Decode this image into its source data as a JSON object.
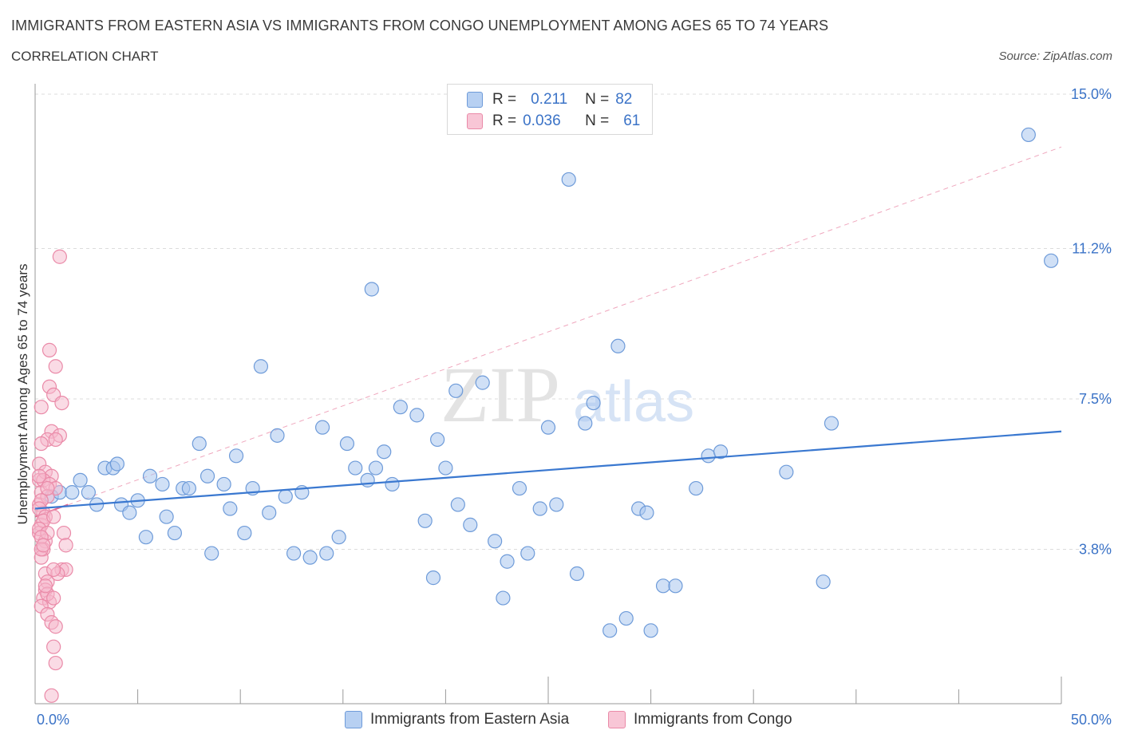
{
  "header": {
    "title": "IMMIGRANTS FROM EASTERN ASIA VS IMMIGRANTS FROM CONGO UNEMPLOYMENT AMONG AGES 65 TO 74 YEARS",
    "subtitle": "CORRELATION CHART",
    "source": "Source: ZipAtlas.com"
  },
  "watermark": {
    "zip": "ZIP",
    "atlas": "atlas"
  },
  "stats": {
    "blue": {
      "r_label": "R =",
      "r_value": "0.211",
      "n_label": "N =",
      "n_value": "82"
    },
    "pink": {
      "r_label": "R =",
      "r_value": "0.036",
      "n_label": "N =",
      "n_value": "61"
    }
  },
  "colors": {
    "blue_fill": "#a9c7ef",
    "blue_stroke": "#6e9bd9",
    "blue_line": "#3a78d0",
    "pink_fill": "#f6b8cb",
    "pink_stroke": "#ea8aa8",
    "pink_line": "#e06a92",
    "tick_text": "#3b73c7"
  },
  "chart_data": {
    "type": "scatter",
    "title": "IMMIGRANTS FROM EASTERN ASIA VS IMMIGRANTS FROM CONGO UNEMPLOYMENT AMONG AGES 65 TO 74 YEARS",
    "xlabel": "",
    "ylabel": "Unemployment Among Ages 65 to 74 years",
    "xlim": [
      0,
      50
    ],
    "ylim": [
      0,
      15
    ],
    "x_tick_labels": [
      "0.0%",
      "50.0%"
    ],
    "y_ticks": [
      3.8,
      7.5,
      11.2,
      15.0
    ],
    "y_tick_labels": [
      "3.8%",
      "7.5%",
      "11.2%",
      "15.0%"
    ],
    "grid": true,
    "legend_position": "bottom",
    "series": [
      {
        "name": "Immigrants from Eastern Asia",
        "color": "#a9c7ef",
        "trend": {
          "x": [
            0,
            50
          ],
          "y": [
            4.8,
            6.7
          ]
        },
        "points": [
          [
            0.8,
            5.1
          ],
          [
            1.2,
            5.2
          ],
          [
            1.8,
            5.2
          ],
          [
            2.2,
            5.5
          ],
          [
            2.6,
            5.2
          ],
          [
            3.0,
            4.9
          ],
          [
            3.4,
            5.8
          ],
          [
            3.8,
            5.8
          ],
          [
            4.2,
            4.9
          ],
          [
            4.6,
            4.7
          ],
          [
            5.0,
            5.0
          ],
          [
            5.4,
            4.1
          ],
          [
            5.6,
            5.6
          ],
          [
            6.2,
            5.4
          ],
          [
            6.4,
            4.6
          ],
          [
            6.8,
            4.2
          ],
          [
            7.2,
            5.3
          ],
          [
            7.5,
            5.3
          ],
          [
            8.0,
            6.4
          ],
          [
            8.4,
            5.6
          ],
          [
            8.6,
            3.7
          ],
          [
            9.2,
            5.4
          ],
          [
            9.5,
            4.8
          ],
          [
            9.8,
            6.1
          ],
          [
            10.2,
            4.2
          ],
          [
            10.6,
            5.3
          ],
          [
            11.0,
            8.3
          ],
          [
            11.4,
            4.7
          ],
          [
            11.8,
            6.6
          ],
          [
            12.2,
            5.1
          ],
          [
            12.6,
            3.7
          ],
          [
            13.0,
            5.2
          ],
          [
            13.4,
            3.6
          ],
          [
            14.0,
            6.8
          ],
          [
            14.2,
            3.7
          ],
          [
            14.8,
            4.1
          ],
          [
            15.2,
            6.4
          ],
          [
            15.6,
            5.8
          ],
          [
            16.2,
            5.5
          ],
          [
            16.4,
            10.2
          ],
          [
            16.6,
            5.8
          ],
          [
            17.0,
            6.2
          ],
          [
            17.4,
            5.4
          ],
          [
            17.8,
            7.3
          ],
          [
            18.6,
            7.1
          ],
          [
            19.0,
            4.5
          ],
          [
            19.4,
            3.1
          ],
          [
            19.6,
            6.5
          ],
          [
            20.0,
            5.8
          ],
          [
            20.5,
            7.7
          ],
          [
            20.6,
            4.9
          ],
          [
            21.2,
            4.4
          ],
          [
            21.8,
            7.9
          ],
          [
            22.4,
            4.0
          ],
          [
            22.8,
            2.6
          ],
          [
            23.0,
            3.5
          ],
          [
            23.6,
            5.3
          ],
          [
            24.0,
            3.7
          ],
          [
            24.6,
            4.8
          ],
          [
            25.0,
            6.8
          ],
          [
            25.4,
            4.9
          ],
          [
            26.0,
            12.9
          ],
          [
            26.4,
            3.2
          ],
          [
            27.2,
            7.4
          ],
          [
            28.0,
            1.8
          ],
          [
            28.4,
            8.8
          ],
          [
            28.8,
            2.1
          ],
          [
            29.4,
            4.8
          ],
          [
            29.8,
            4.7
          ],
          [
            30.0,
            1.8
          ],
          [
            30.6,
            2.9
          ],
          [
            31.2,
            2.9
          ],
          [
            32.2,
            5.3
          ],
          [
            32.8,
            6.1
          ],
          [
            33.4,
            6.2
          ],
          [
            36.6,
            5.7
          ],
          [
            38.4,
            3.0
          ],
          [
            38.8,
            6.9
          ],
          [
            48.4,
            14.0
          ],
          [
            49.5,
            10.9
          ],
          [
            4.0,
            5.9
          ],
          [
            26.8,
            6.9
          ]
        ]
      },
      {
        "name": "Immigrants from Congo",
        "color": "#f6b8cb",
        "trend": {
          "x": [
            0,
            1.6
          ],
          "y": [
            4.6,
            4.9
          ]
        },
        "points": [
          [
            0.2,
            5.5
          ],
          [
            0.3,
            5.2
          ],
          [
            0.2,
            4.9
          ],
          [
            0.4,
            4.7
          ],
          [
            0.3,
            4.4
          ],
          [
            0.2,
            4.2
          ],
          [
            0.5,
            4.0
          ],
          [
            0.4,
            3.8
          ],
          [
            0.3,
            3.6
          ],
          [
            0.5,
            3.2
          ],
          [
            0.6,
            3.0
          ],
          [
            0.5,
            2.8
          ],
          [
            0.4,
            2.6
          ],
          [
            0.7,
            2.5
          ],
          [
            0.3,
            2.4
          ],
          [
            0.6,
            2.2
          ],
          [
            0.8,
            2.0
          ],
          [
            0.9,
            1.4
          ],
          [
            1.0,
            1.0
          ],
          [
            0.8,
            0.2
          ],
          [
            1.2,
            11.0
          ],
          [
            0.7,
            8.7
          ],
          [
            1.0,
            8.3
          ],
          [
            0.7,
            7.8
          ],
          [
            0.9,
            7.6
          ],
          [
            1.3,
            7.4
          ],
          [
            0.3,
            7.3
          ],
          [
            0.8,
            6.7
          ],
          [
            1.2,
            6.6
          ],
          [
            0.6,
            6.5
          ],
          [
            1.0,
            6.5
          ],
          [
            0.3,
            6.4
          ],
          [
            0.2,
            5.9
          ],
          [
            0.5,
            5.7
          ],
          [
            0.8,
            5.6
          ],
          [
            0.4,
            5.5
          ],
          [
            0.7,
            5.4
          ],
          [
            1.0,
            5.3
          ],
          [
            0.6,
            5.1
          ],
          [
            0.3,
            5.0
          ],
          [
            0.2,
            4.8
          ],
          [
            0.5,
            4.6
          ],
          [
            0.4,
            4.5
          ],
          [
            0.2,
            4.3
          ],
          [
            0.6,
            4.2
          ],
          [
            1.4,
            4.2
          ],
          [
            0.3,
            4.1
          ],
          [
            1.5,
            3.9
          ],
          [
            1.3,
            3.3
          ],
          [
            1.5,
            3.3
          ],
          [
            1.1,
            3.2
          ],
          [
            0.9,
            3.3
          ],
          [
            0.6,
            2.7
          ],
          [
            0.9,
            2.6
          ],
          [
            0.3,
            3.8
          ],
          [
            0.5,
            2.9
          ],
          [
            1.0,
            1.9
          ],
          [
            0.2,
            5.6
          ],
          [
            0.6,
            5.3
          ],
          [
            0.9,
            4.6
          ],
          [
            0.4,
            3.9
          ]
        ]
      }
    ]
  },
  "legend": {
    "blue_label": "Immigrants from Eastern Asia",
    "pink_label": "Immigrants from Congo"
  }
}
